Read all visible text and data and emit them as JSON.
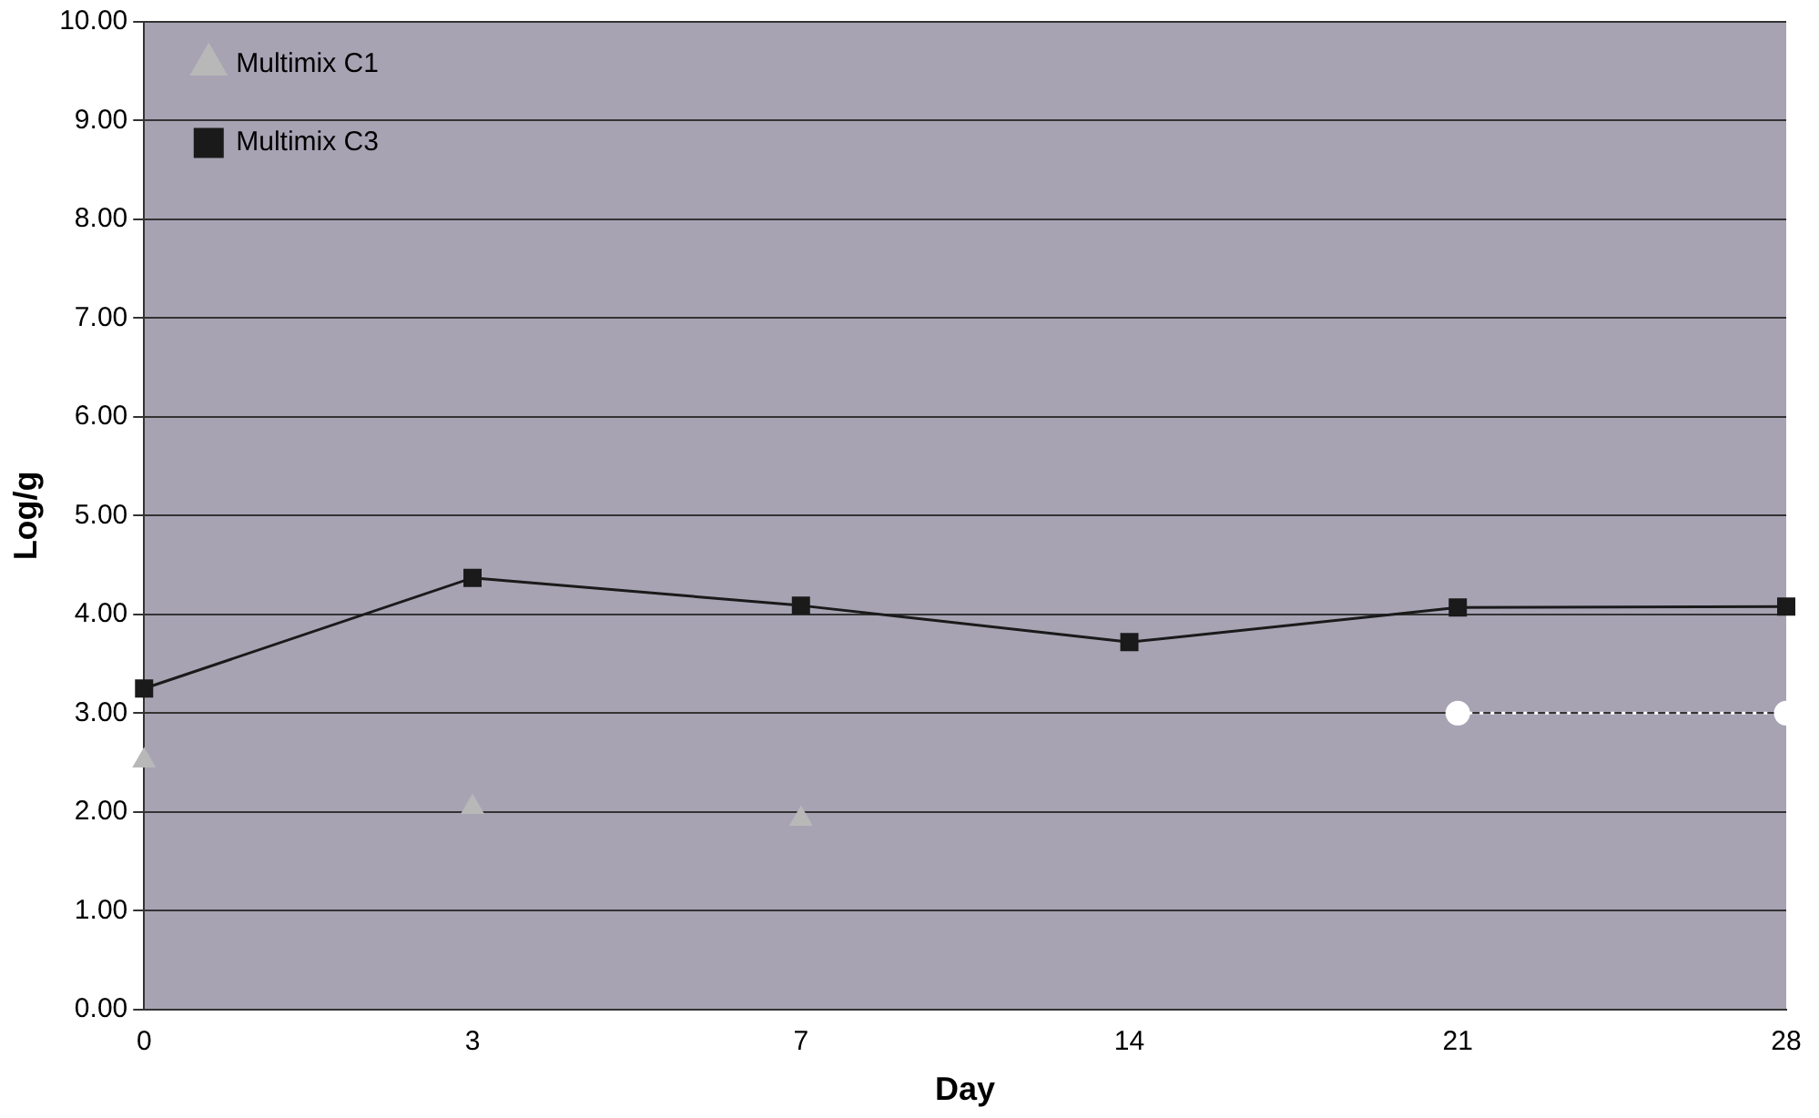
{
  "chart_data": {
    "type": "line",
    "xlabel": "Day",
    "ylabel": "Log/g",
    "categories": [
      "0",
      "3",
      "7",
      "14",
      "21",
      "28"
    ],
    "series": [
      {
        "name": "Multimix C1",
        "type": "scatter",
        "color": "#b8b8b8",
        "values": [
          2.52,
          2.05,
          1.93,
          null,
          null,
          null
        ],
        "marker": "triangle"
      },
      {
        "name": "Multimix C3",
        "color": "#1a1a1a",
        "values": [
          3.25,
          4.37,
          4.09,
          3.72,
          4.07,
          4.08
        ],
        "marker": "square",
        "line_style": "solid"
      },
      {
        "color": "#ffffff",
        "values": [
          null,
          null,
          null,
          null,
          3.0,
          3.0
        ],
        "marker": "circle",
        "line_style": "dotted"
      }
    ],
    "ylim": [
      0,
      10
    ],
    "yticks": [
      {
        "value": 0,
        "label": "0.00"
      },
      {
        "value": 1,
        "label": "1.00"
      },
      {
        "value": 2,
        "label": "2.00"
      },
      {
        "value": 3,
        "label": "3.00"
      },
      {
        "value": 4,
        "label": "4.00"
      },
      {
        "value": 5,
        "label": "5.00"
      },
      {
        "value": 6,
        "label": "6.00"
      },
      {
        "value": 7,
        "label": "7.00"
      },
      {
        "value": 8,
        "label": "8.00"
      },
      {
        "value": 9,
        "label": "9.00"
      },
      {
        "value": 10,
        "label": "10.00"
      }
    ],
    "grid": "y",
    "legend": "top left"
  }
}
